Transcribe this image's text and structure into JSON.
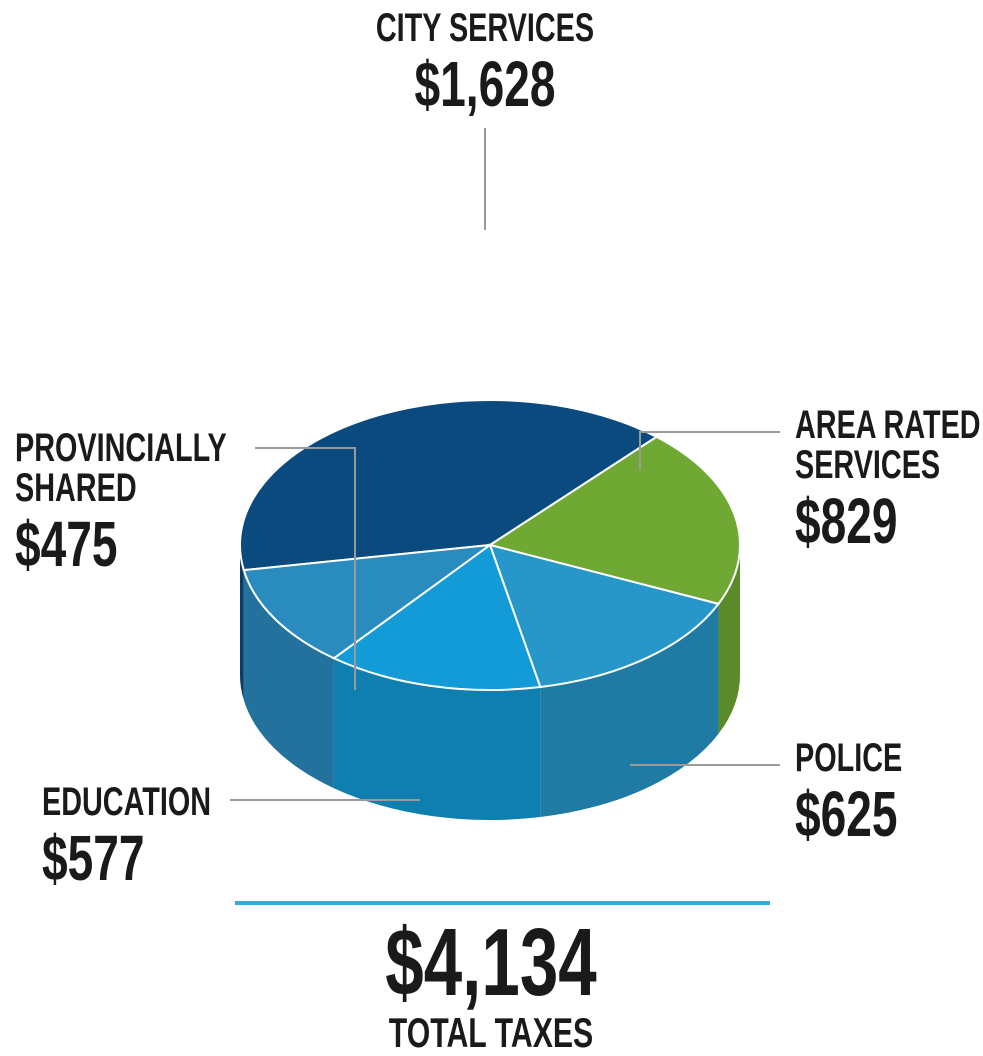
{
  "chart_data": {
    "type": "pie",
    "categories": [
      "CITY SERVICES",
      "AREA RATED SERVICES",
      "POLICE",
      "EDUCATION",
      "PROVINCIALLY SHARED"
    ],
    "values": [
      1628,
      829,
      625,
      577,
      475
    ],
    "value_labels": [
      "$1,628",
      "$829",
      "$625",
      "$577",
      "$475"
    ],
    "colors": [
      "#0b4a7e",
      "#6fa833",
      "#2796c8",
      "#129bd6",
      "#2a8bbf"
    ],
    "total": {
      "value": 4134,
      "label": "$4,134"
    },
    "total_caption": "TOTAL TAXES"
  }
}
